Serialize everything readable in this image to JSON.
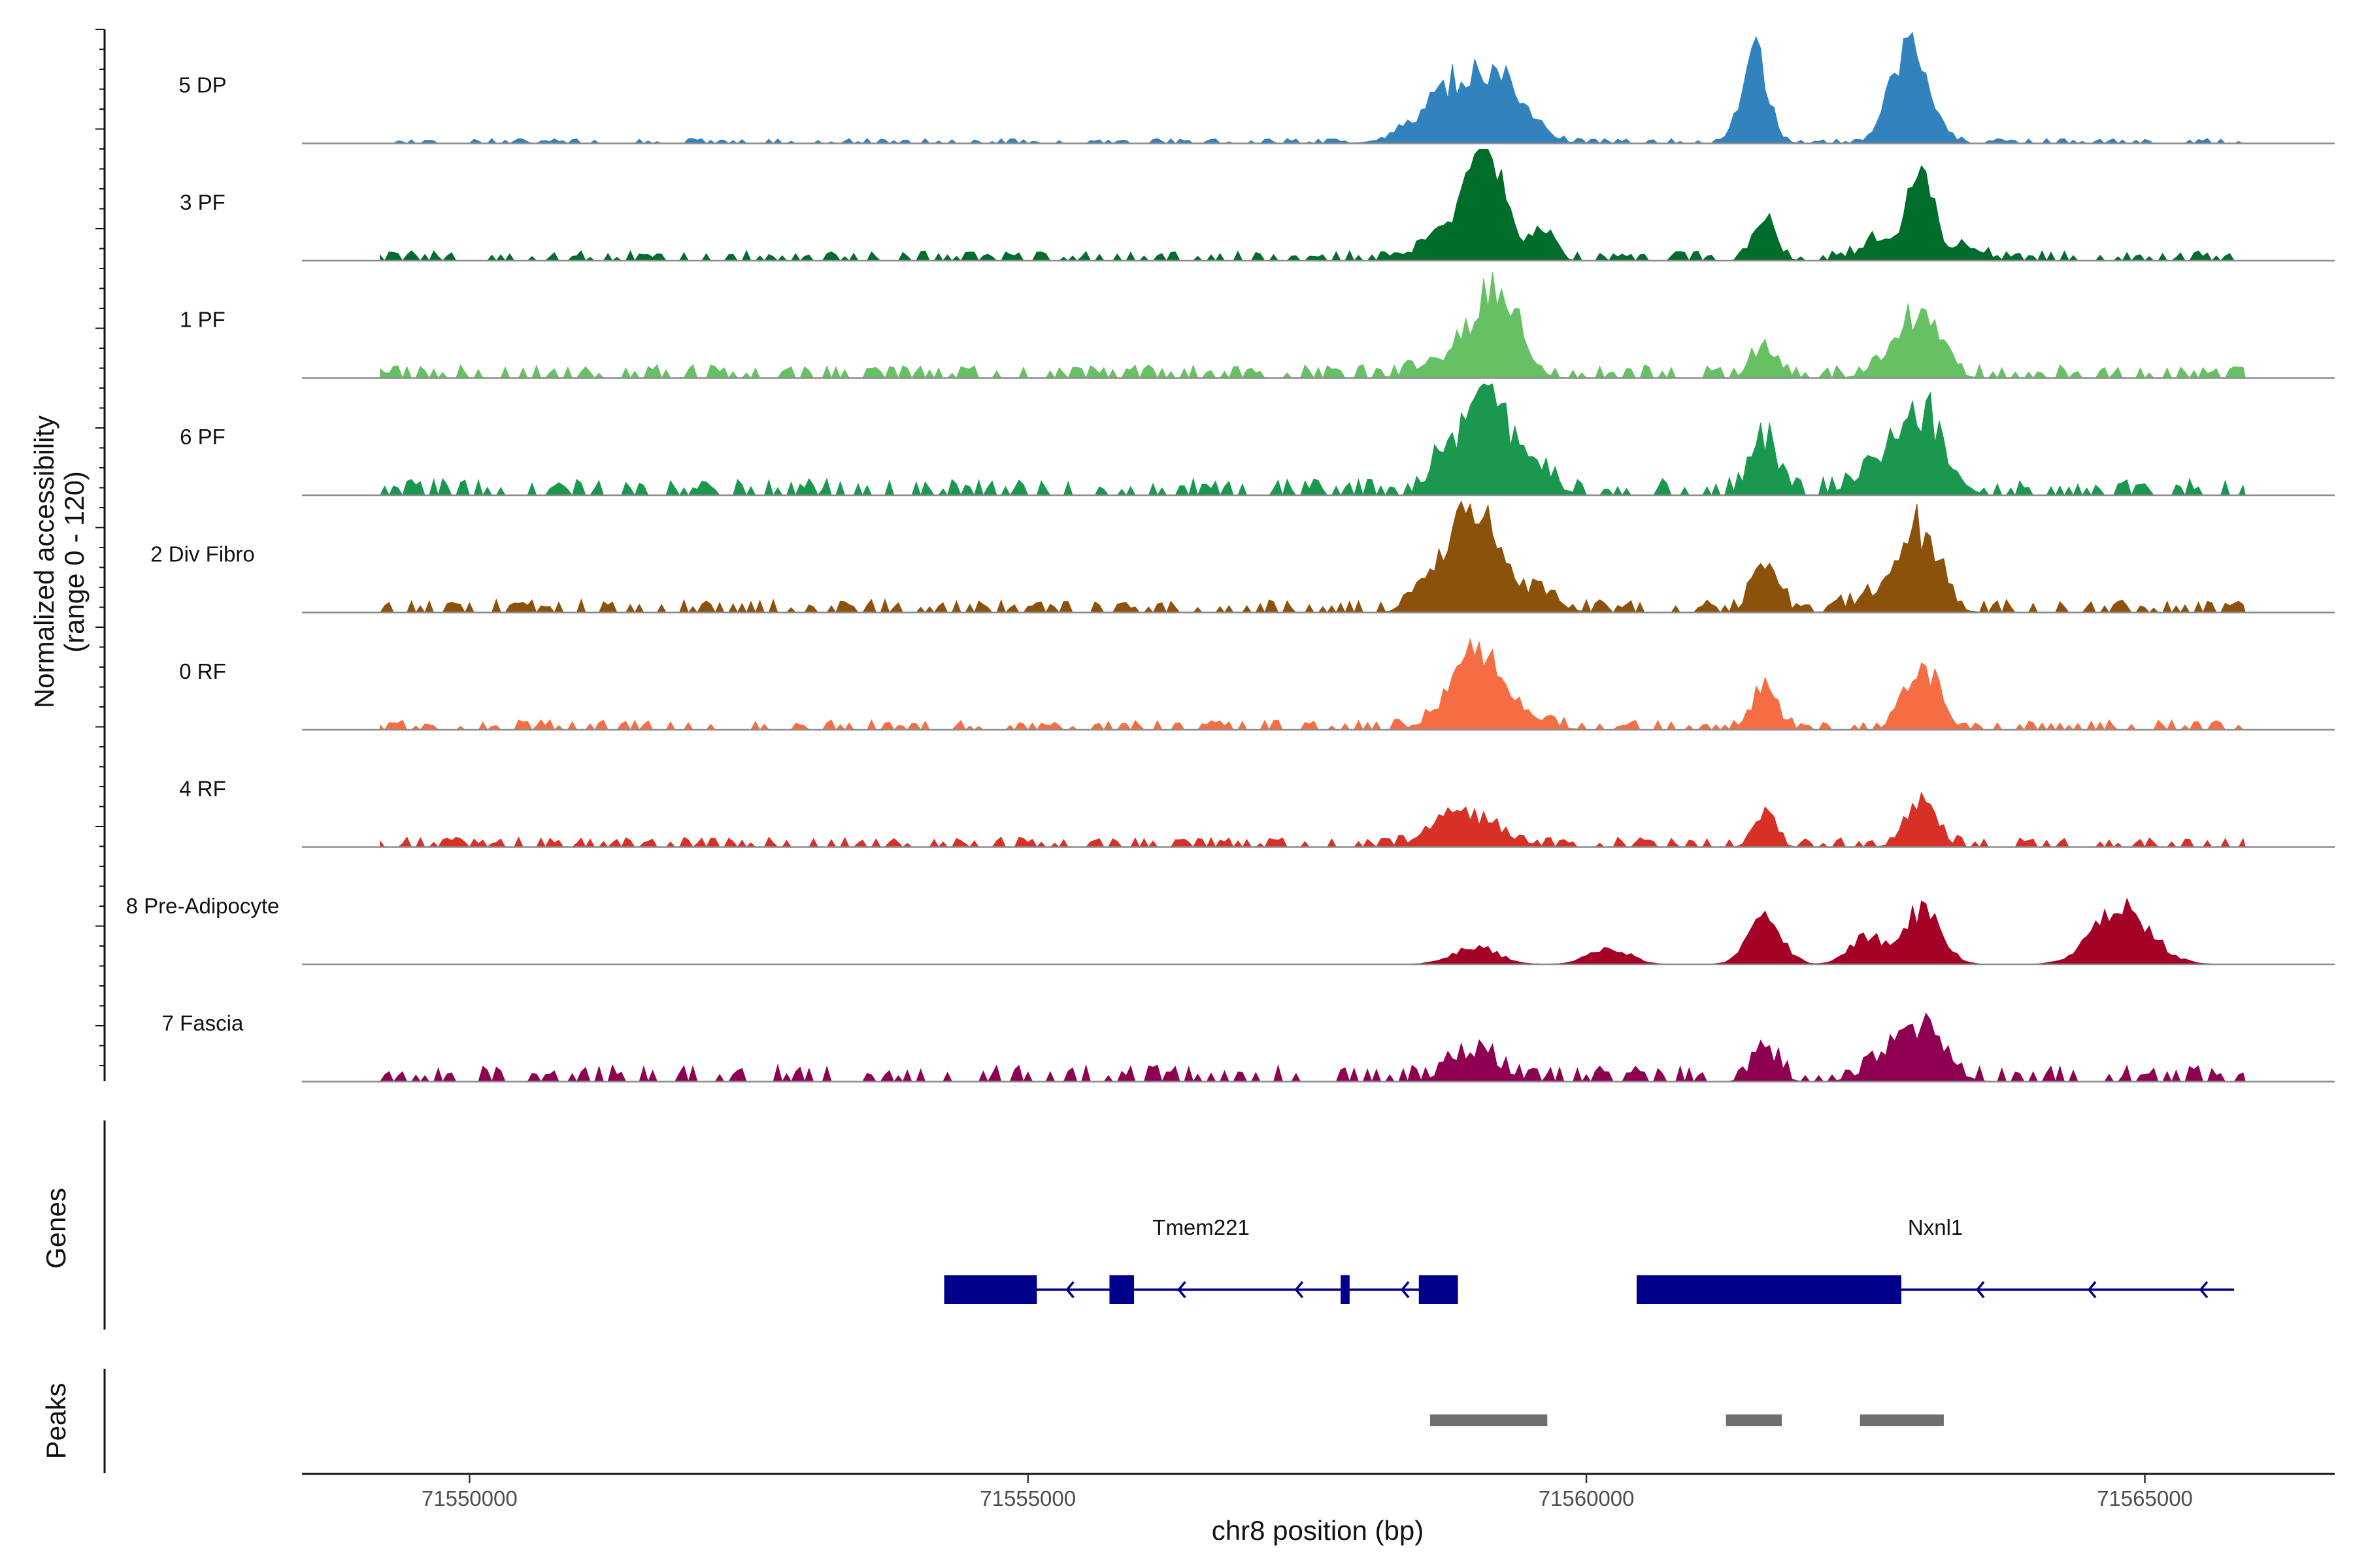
{
  "chart_data": {
    "type": "area",
    "title": "",
    "xlabel": "chr8 position (bp)",
    "ylabel": "Normalized accessibility",
    "ylabel_range": "(range 0 - 120)",
    "ylim": [
      0,
      120
    ],
    "xlim": [
      71548500,
      71566700
    ],
    "x_ticks": [
      71550000,
      71555000,
      71560000,
      71565000
    ],
    "x_tick_labels": [
      "71550000",
      "71555000",
      "71560000",
      "71565000"
    ],
    "tracks": [
      {
        "name": "5 DP",
        "color": "#3182bd",
        "peaks": [
          [
            71558900,
            0.55,
            330
          ],
          [
            71559300,
            0.3,
            200
          ],
          [
            71561500,
            0.78,
            120
          ],
          [
            71562900,
            0.92,
            160
          ]
        ],
        "bg": 0.015
      },
      {
        "name": "3 PF",
        "color": "#006d2c",
        "peaks": [
          [
            71559100,
            0.95,
            170
          ],
          [
            71558700,
            0.2,
            200
          ],
          [
            71559600,
            0.25,
            100
          ],
          [
            71561600,
            0.35,
            100
          ],
          [
            71563000,
            0.7,
            120
          ],
          [
            71562600,
            0.18,
            150
          ],
          [
            71563400,
            0.1,
            150
          ]
        ],
        "bg": 0.03
      },
      {
        "name": "1 PF",
        "color": "#66c164",
        "peaks": [
          [
            71559200,
            0.8,
            180
          ],
          [
            71558800,
            0.18,
            250
          ],
          [
            71561600,
            0.3,
            110
          ],
          [
            71563000,
            0.55,
            160
          ],
          [
            71562700,
            0.15,
            150
          ]
        ],
        "bg": 0.04
      },
      {
        "name": "6 PF",
        "color": "#1a9850",
        "peaks": [
          [
            71559100,
            0.95,
            200
          ],
          [
            71558700,
            0.25,
            120
          ],
          [
            71559600,
            0.15,
            150
          ],
          [
            71561600,
            0.48,
            120
          ],
          [
            71563000,
            0.68,
            200
          ],
          [
            71562600,
            0.2,
            200
          ]
        ],
        "bg": 0.05
      },
      {
        "name": "2 Div Fibro",
        "color": "#8c510a",
        "peaks": [
          [
            71559000,
            0.98,
            180
          ],
          [
            71558600,
            0.3,
            150
          ],
          [
            71559500,
            0.2,
            200
          ],
          [
            71561600,
            0.42,
            110
          ],
          [
            71563000,
            0.7,
            160
          ],
          [
            71562600,
            0.15,
            200
          ]
        ],
        "bg": 0.04
      },
      {
        "name": "0 RF",
        "color": "#f46d43",
        "peaks": [
          [
            71559000,
            0.45,
            200
          ],
          [
            71559100,
            0.3,
            300
          ],
          [
            71561600,
            0.35,
            110
          ],
          [
            71563000,
            0.6,
            140
          ]
        ],
        "bg": 0.03
      },
      {
        "name": "4 RF",
        "color": "#d73027",
        "peaks": [
          [
            71559000,
            0.22,
            250
          ],
          [
            71561600,
            0.33,
            90
          ],
          [
            71563000,
            0.38,
            130
          ],
          [
            71558700,
            0.1,
            200
          ]
        ],
        "bg": 0.03
      },
      {
        "name": "8 Pre-Adipocyte",
        "color": "#a50026",
        "peaks": [
          [
            71561600,
            0.42,
            150
          ],
          [
            71563000,
            0.48,
            170
          ],
          [
            71562500,
            0.25,
            150
          ],
          [
            71564800,
            0.5,
            250
          ],
          [
            71559000,
            0.16,
            200
          ],
          [
            71560200,
            0.15,
            180
          ]
        ],
        "bg": 0.0
      },
      {
        "name": "7 Fascia",
        "color": "#8e0152",
        "peaks": [
          [
            71559000,
            0.25,
            200
          ],
          [
            71561600,
            0.28,
            110
          ],
          [
            71563000,
            0.42,
            200
          ],
          [
            71562700,
            0.15,
            200
          ]
        ],
        "bg": 0.05
      }
    ],
    "genes": [
      {
        "name": "Tmem221",
        "strand": "-",
        "start": 71554250,
        "end": 71558850,
        "exons": [
          [
            71554250,
            71555080
          ],
          [
            71555730,
            71555950
          ],
          [
            71557800,
            71557880
          ],
          [
            71558500,
            71558850
          ]
        ],
        "arrows": [
          71555350,
          71556350,
          71557400,
          71558350
        ]
      },
      {
        "name": "Nxnl1",
        "strand": "-",
        "start": 71560450,
        "end": 71565800,
        "exons": [
          [
            71560450,
            71562820
          ]
        ],
        "arrows": [
          71563500,
          71564500,
          71565500
        ]
      }
    ],
    "peaks": [
      [
        71558600,
        71559650
      ],
      [
        71561250,
        71561750
      ],
      [
        71562450,
        71563200
      ]
    ]
  },
  "labels": {
    "genes_panel": "Genes",
    "peaks_panel": "Peaks"
  }
}
